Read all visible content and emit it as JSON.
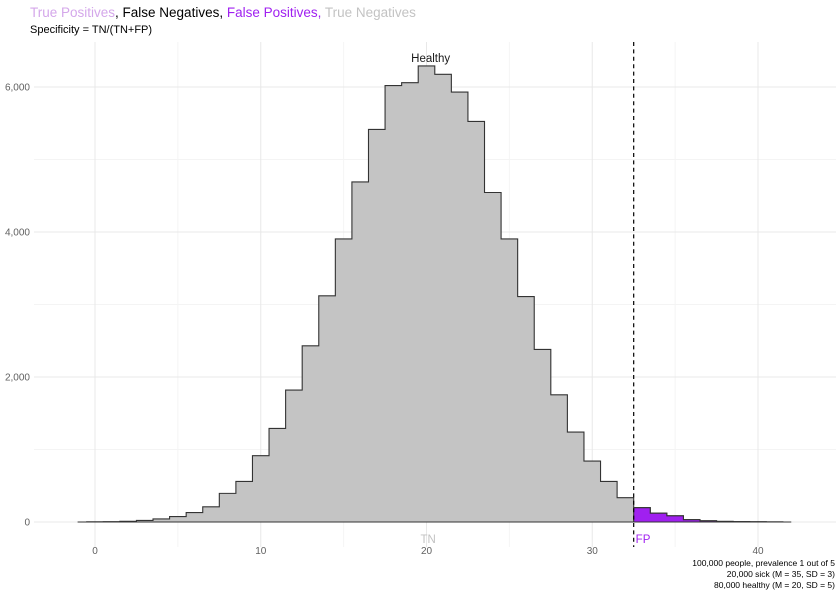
{
  "title": {
    "segments": [
      {
        "text": "True Positives",
        "color": "#D4A7EA"
      },
      {
        "text": ", False Negatives, ",
        "color": "#000000"
      },
      {
        "text": "False Positives,",
        "color": "#A020F0"
      },
      {
        "text": " True Negatives",
        "color": "#C3C3C3"
      }
    ]
  },
  "subtitle": "Specificity = TN/(TN+FP)",
  "annotations": {
    "healthy": "Healthy",
    "tn": "TN",
    "fp": "FP"
  },
  "caption": {
    "lines": [
      "100,000 people, prevalence 1 out of 5",
      "20,000 sick (M = 35, SD = 3)",
      "80,000 healthy (M = 20, SD = 5)"
    ]
  },
  "chart_data": {
    "type": "bar",
    "subtype": "histogram-outline",
    "title": "Healthy distribution with TN / FP split at threshold",
    "xlabel": "",
    "ylabel": "",
    "bin_width": 1,
    "bin_start_center": -1,
    "counts": [
      0,
      2,
      5,
      10,
      22,
      42,
      75,
      130,
      210,
      395,
      560,
      915,
      1290,
      1820,
      2430,
      3120,
      3905,
      4690,
      5415,
      6020,
      6060,
      6290,
      6175,
      5930,
      5525,
      4545,
      3905,
      3110,
      2380,
      1755,
      1240,
      840,
      560,
      336,
      198,
      122,
      85,
      32,
      16,
      8,
      4,
      2,
      1,
      0
    ],
    "threshold": 32.5,
    "outline_x_end": 42,
    "x_ticks": [
      {
        "v": 0,
        "label": "0"
      },
      {
        "v": 10,
        "label": "10"
      },
      {
        "v": 20,
        "label": "20"
      },
      {
        "v": 30,
        "label": "30"
      },
      {
        "v": 40,
        "label": "40"
      }
    ],
    "x_minor": [
      5,
      15,
      25,
      35
    ],
    "y_ticks": [
      {
        "v": 0,
        "label": "0"
      },
      {
        "v": 2000,
        "label": "2,000"
      },
      {
        "v": 4000,
        "label": "4,000"
      },
      {
        "v": 6000,
        "label": "6,000"
      }
    ],
    "y_minor": [
      1000,
      3000,
      5000
    ],
    "xlim": [
      -1.05,
      44.7
    ],
    "ylim": [
      0,
      6620
    ],
    "legend_position": "none",
    "grid": "on",
    "colors": {
      "tn_fill": "#C4C4C4",
      "fp_fill": "#A020F0",
      "outline": "#333333",
      "threshold_line": "#000000",
      "grid_major": "#E8E8E8",
      "grid_minor": "#F4F4F4",
      "axis_text": "#606060",
      "tn_label": "#C2C2C2",
      "fp_label": "#A020F0",
      "healthy_label": "#1A1A1A"
    }
  }
}
